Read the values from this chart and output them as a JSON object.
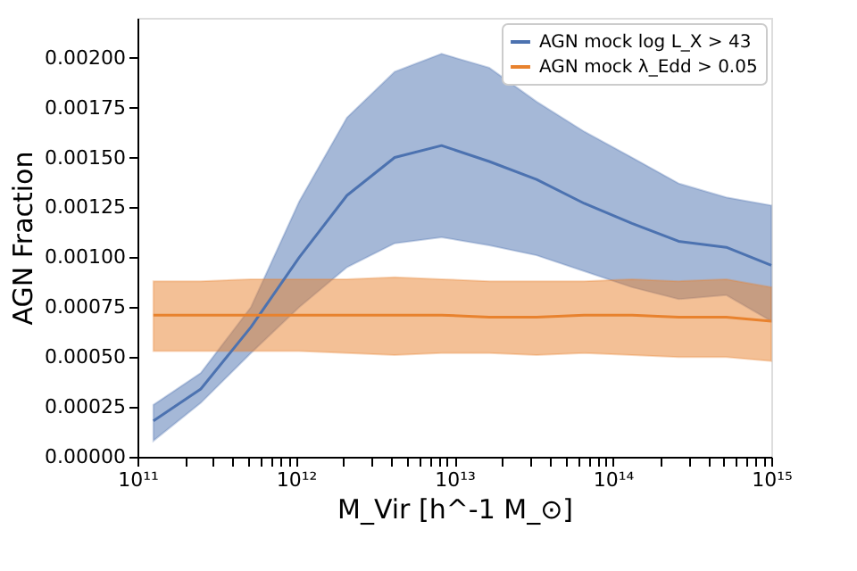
{
  "chart_data": {
    "type": "line",
    "xlabel": "M_Vir [h^-1 M_⊙]",
    "ylabel": "AGN Fraction",
    "x": [
      126000000000.0,
      251000000000.0,
      520000000000.0,
      1050000000000.0,
      2100000000000.0,
      4200000000000.0,
      8300000000000.0,
      16600000000000.0,
      33000000000000.0,
      66000000000000.0,
      132000000000000.0,
      260000000000000.0,
      520000000000000.0,
      1000000000000000.0
    ],
    "series": [
      {
        "name": "AGN mock log L_X > 43",
        "color": "#4c72b0",
        "values": [
          0.00018,
          0.00034,
          0.00065,
          0.001,
          0.00131,
          0.0015,
          0.00156,
          0.00148,
          0.00139,
          0.00127,
          0.00117,
          0.00108,
          0.00105,
          0.00096
        ],
        "lower": [
          8e-05,
          0.00027,
          0.00052,
          0.00075,
          0.00095,
          0.00107,
          0.0011,
          0.00106,
          0.00101,
          0.00093,
          0.00085,
          0.00079,
          0.00081,
          0.00068
        ],
        "upper": [
          0.00026,
          0.00042,
          0.00075,
          0.00128,
          0.0017,
          0.00193,
          0.00202,
          0.00195,
          0.00178,
          0.00163,
          0.0015,
          0.00137,
          0.0013,
          0.00126
        ]
      },
      {
        "name": "AGN mock λ_Edd > 0.05",
        "color": "#e8822e",
        "values": [
          0.00071,
          0.00071,
          0.00071,
          0.00071,
          0.00071,
          0.00071,
          0.00071,
          0.0007,
          0.0007,
          0.00071,
          0.00071,
          0.0007,
          0.0007,
          0.00068
        ],
        "lower": [
          0.00053,
          0.00053,
          0.00053,
          0.00053,
          0.00052,
          0.00051,
          0.00052,
          0.00052,
          0.00051,
          0.00052,
          0.00051,
          0.0005,
          0.0005,
          0.00048
        ],
        "upper": [
          0.00088,
          0.00088,
          0.00089,
          0.00089,
          0.00089,
          0.0009,
          0.00089,
          0.00088,
          0.00088,
          0.00088,
          0.00089,
          0.00088,
          0.00089,
          0.00085
        ]
      }
    ],
    "log": "x",
    "xlim": [
      100000000000.0,
      1000000000000000.0
    ],
    "ylim": [
      0,
      0.0022
    ],
    "xticks": [
      {
        "value": 100000000000.0,
        "label": "10¹¹"
      },
      {
        "value": 200000000000.0,
        "label": null
      },
      {
        "value": 300000000000.0,
        "label": null
      },
      {
        "value": 400000000000.0,
        "label": null
      },
      {
        "value": 500000000000.0,
        "label": null
      },
      {
        "value": 600000000000.0,
        "label": null
      },
      {
        "value": 700000000000.0,
        "label": null
      },
      {
        "value": 800000000000.0,
        "label": null
      },
      {
        "value": 900000000000.0,
        "label": null
      },
      {
        "value": 1000000000000.0,
        "label": "10¹²"
      },
      {
        "value": 2000000000000.0,
        "label": null
      },
      {
        "value": 3000000000000.0,
        "label": null
      },
      {
        "value": 4000000000000.0,
        "label": null
      },
      {
        "value": 5000000000000.0,
        "label": null
      },
      {
        "value": 6000000000000.0,
        "label": null
      },
      {
        "value": 7000000000000.0,
        "label": null
      },
      {
        "value": 8000000000000.0,
        "label": null
      },
      {
        "value": 9000000000000.0,
        "label": null
      },
      {
        "value": 10000000000000.0,
        "label": "10¹³"
      },
      {
        "value": 20000000000000.0,
        "label": null
      },
      {
        "value": 30000000000000.0,
        "label": null
      },
      {
        "value": 40000000000000.0,
        "label": null
      },
      {
        "value": 50000000000000.0,
        "label": null
      },
      {
        "value": 60000000000000.0,
        "label": null
      },
      {
        "value": 70000000000000.0,
        "label": null
      },
      {
        "value": 80000000000000.0,
        "label": null
      },
      {
        "value": 90000000000000.0,
        "label": null
      },
      {
        "value": 100000000000000.0,
        "label": "10¹⁴"
      },
      {
        "value": 200000000000000.0,
        "label": null
      },
      {
        "value": 300000000000000.0,
        "label": null
      },
      {
        "value": 400000000000000.0,
        "label": null
      },
      {
        "value": 500000000000000.0,
        "label": null
      },
      {
        "value": 600000000000000.0,
        "label": null
      },
      {
        "value": 700000000000000.0,
        "label": null
      },
      {
        "value": 800000000000000.0,
        "label": null
      },
      {
        "value": 900000000000000.0,
        "label": null
      },
      {
        "value": 1000000000000000.0,
        "label": "10¹⁵"
      }
    ],
    "yticks": [
      {
        "value": 0,
        "label": "0.00000"
      },
      {
        "value": 0.00025,
        "label": "0.00025"
      },
      {
        "value": 0.0005,
        "label": "0.00050"
      },
      {
        "value": 0.00075,
        "label": "0.00075"
      },
      {
        "value": 0.001,
        "label": "0.00100"
      },
      {
        "value": 0.00125,
        "label": "0.00125"
      },
      {
        "value": 0.0015,
        "label": "0.00150"
      },
      {
        "value": 0.00175,
        "label": "0.00175"
      },
      {
        "value": 0.002,
        "label": "0.00200"
      }
    ],
    "grid": false,
    "legend": "top right",
    "marker": "none",
    "line_style": "solid"
  }
}
